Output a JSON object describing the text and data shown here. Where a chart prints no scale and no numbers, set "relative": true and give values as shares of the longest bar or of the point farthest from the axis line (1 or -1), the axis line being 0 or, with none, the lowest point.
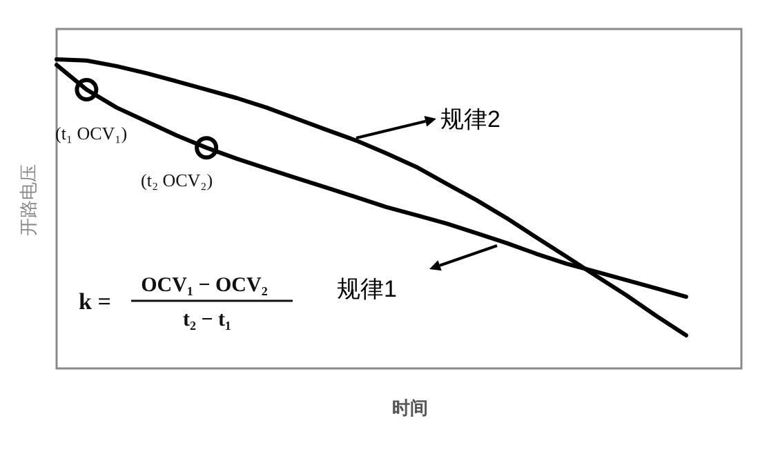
{
  "chart_data": {
    "type": "line",
    "relative": true,
    "xlabel": "时间",
    "ylabel": "开路电压",
    "categories": [
      null,
      null,
      null,
      null,
      null,
      null,
      null,
      null,
      null,
      null,
      null,
      null,
      null,
      null,
      null,
      null,
      null,
      null,
      null,
      null,
      null,
      null
    ],
    "series": [
      {
        "name": "规律1",
        "color": "#000000",
        "line_style": "solid",
        "values": [
          0.982,
          0.902,
          0.844,
          0.799,
          0.754,
          0.714,
          0.679,
          0.647,
          0.616,
          0.585,
          0.554,
          0.522,
          0.496,
          0.469,
          0.438,
          0.406,
          0.371,
          0.339,
          0.313,
          0.286,
          0.259,
          0.232
        ]
      },
      {
        "name": "规律2",
        "color": "#000000",
        "line_style": "solid",
        "values": [
          1,
          0.996,
          0.978,
          0.955,
          0.929,
          0.902,
          0.875,
          0.844,
          0.808,
          0.772,
          0.737,
          0.696,
          0.652,
          0.598,
          0.545,
          0.487,
          0.424,
          0.362,
          0.299,
          0.237,
          0.17,
          0.107
        ]
      }
    ],
    "annotations": [
      "(t₁ OCV₁)",
      "(t₂ OCV₂)",
      "k =",
      "OCV₁ − OCV₂",
      "t₂ − t₁"
    ]
  }
}
